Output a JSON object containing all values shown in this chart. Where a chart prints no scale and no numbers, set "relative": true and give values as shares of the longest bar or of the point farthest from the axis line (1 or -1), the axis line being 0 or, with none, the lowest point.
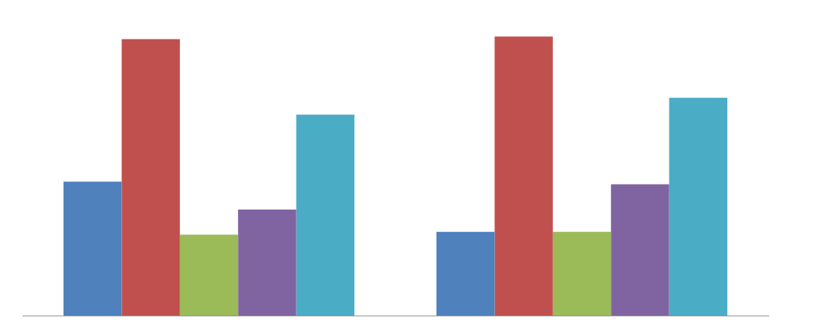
{
  "chart_data": {
    "type": "bar",
    "relative": true,
    "categories": [
      null,
      null
    ],
    "series": [
      {
        "color": "#4f81bd",
        "values": [
          0.48,
          0.3
        ]
      },
      {
        "color": "#c0504d",
        "values": [
          0.99,
          1
        ]
      },
      {
        "color": "#9bbb59",
        "values": [
          0.29,
          0.3
        ]
      },
      {
        "color": "#8064a2",
        "values": [
          0.38,
          0.47
        ]
      },
      {
        "color": "#4bacc6",
        "values": [
          0.72,
          0.78
        ]
      }
    ],
    "legend": false,
    "grid": false
  }
}
